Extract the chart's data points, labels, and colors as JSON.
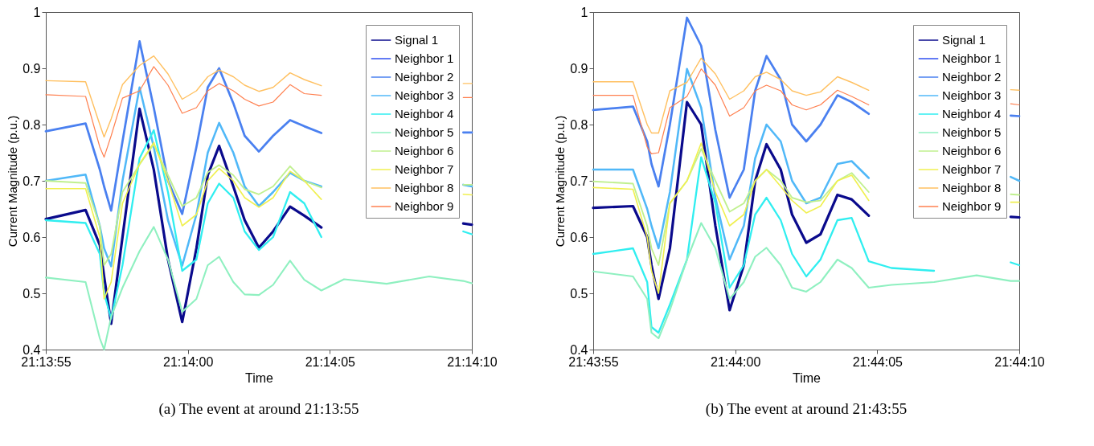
{
  "chart_data": [
    {
      "type": "line",
      "xlabel": "Time",
      "ylabel": "Current Magnitude (p.u.)",
      "annotations": [
        "(a)  The event at around 21:13:55"
      ],
      "legend": "top right",
      "grid": false,
      "line_style": "solid",
      "xlim": [
        21.231944,
        21.236111
      ],
      "xticks": [
        {
          "value": 21.231944,
          "label": "21:13:55"
        },
        {
          "value": 21.233333,
          "label": "21:14:00"
        },
        {
          "value": 21.234722,
          "label": "21:14:05"
        },
        {
          "value": 21.236111,
          "label": "21:14:10"
        }
      ],
      "ylim": [
        0.4,
        1
      ],
      "yticks": [
        0.4,
        0.5,
        0.6,
        0.7,
        0.8,
        0.9,
        1
      ],
      "x": [
        21.231944,
        21.232333,
        21.232472,
        21.232514,
        21.232583,
        21.232694,
        21.232861,
        21.233,
        21.233139,
        21.233278,
        21.233417,
        21.233528,
        21.233639,
        21.233778,
        21.233889,
        21.234028,
        21.234167,
        21.234333,
        21.234472,
        21.234639,
        21.234861,
        21.235278,
        21.235694,
        21.236027,
        21.236111
      ],
      "series": [
        {
          "name": "Signal 1",
          "color": "#0a0a8c",
          "values": [
            0.632,
            0.648,
            0.586,
            0.53,
            0.446,
            0.6,
            0.828,
            0.72,
            0.56,
            0.449,
            0.58,
            0.71,
            0.762,
            0.69,
            0.63,
            0.581,
            0.61,
            0.654,
            0.638,
            0.617,
            null,
            null,
            null,
            0.624,
            0.622
          ]
        },
        {
          "name": "Neighbor 1",
          "color": "#2f4ff0",
          "values": [
            null,
            null,
            null,
            null,
            null,
            null,
            null,
            null,
            null,
            null,
            null,
            null,
            null,
            null,
            null,
            null,
            null,
            null,
            null,
            null,
            null,
            null,
            null,
            null,
            null
          ]
        },
        {
          "name": "Neighbor 2",
          "color": "#4a80f0",
          "values": [
            0.788,
            0.802,
            0.72,
            0.69,
            0.647,
            0.77,
            0.948,
            0.83,
            0.7,
            0.641,
            0.76,
            0.866,
            0.9,
            0.838,
            0.78,
            0.752,
            0.78,
            0.808,
            0.797,
            0.785,
            null,
            null,
            null,
            0.786,
            0.786
          ]
        },
        {
          "name": "Neighbor 3",
          "color": "#50b8f8",
          "values": [
            0.7,
            0.711,
            0.62,
            0.58,
            0.548,
            0.7,
            0.866,
            0.76,
            0.63,
            0.549,
            0.64,
            0.75,
            0.803,
            0.75,
            0.69,
            0.655,
            0.68,
            0.714,
            0.7,
            0.69,
            null,
            null,
            null,
            0.693,
            0.69
          ]
        },
        {
          "name": "Neighbor 4",
          "color": "#30eef0",
          "values": [
            0.63,
            0.625,
            0.57,
            0.5,
            0.455,
            0.55,
            0.74,
            0.79,
            0.68,
            0.54,
            0.56,
            0.66,
            0.695,
            0.67,
            0.61,
            0.577,
            0.6,
            0.68,
            0.66,
            0.6,
            null,
            null,
            null,
            0.61,
            0.605
          ]
        },
        {
          "name": "Neighbor 5",
          "color": "#8ff0c0",
          "values": [
            0.528,
            0.52,
            0.42,
            0.4,
            0.458,
            0.51,
            0.575,
            0.618,
            0.56,
            0.467,
            0.49,
            0.55,
            0.565,
            0.52,
            0.498,
            0.497,
            0.515,
            0.558,
            0.524,
            0.505,
            0.525,
            0.517,
            0.53,
            0.522,
            0.518
          ]
        },
        {
          "name": "Neighbor 6",
          "color": "#c0f08f",
          "values": [
            0.7,
            0.696,
            0.62,
            0.55,
            0.57,
            0.68,
            0.729,
            0.765,
            0.71,
            0.655,
            0.67,
            0.715,
            0.728,
            0.71,
            0.685,
            0.676,
            0.69,
            0.726,
            0.7,
            0.688,
            null,
            null,
            null,
            0.693,
            0.693
          ]
        },
        {
          "name": "Neighbor 7",
          "color": "#f0f050",
          "values": [
            0.686,
            0.686,
            0.6,
            0.49,
            0.52,
            0.66,
            0.73,
            0.768,
            0.7,
            0.62,
            0.64,
            0.7,
            0.722,
            0.7,
            0.67,
            0.653,
            0.67,
            0.717,
            0.7,
            0.667,
            null,
            null,
            null,
            0.676,
            0.675
          ]
        },
        {
          "name": "Neighbor 8",
          "color": "#ffc060",
          "values": [
            0.878,
            0.876,
            0.8,
            0.778,
            0.81,
            0.871,
            0.905,
            0.922,
            0.89,
            0.845,
            0.86,
            0.885,
            0.897,
            0.885,
            0.87,
            0.859,
            0.866,
            0.892,
            0.88,
            0.869,
            null,
            null,
            null,
            0.873,
            0.873
          ]
        },
        {
          "name": "Neighbor 9",
          "color": "#ff8050",
          "values": [
            0.853,
            0.85,
            0.76,
            0.742,
            0.78,
            0.847,
            0.86,
            0.903,
            0.87,
            0.82,
            0.83,
            0.86,
            0.873,
            0.86,
            0.845,
            0.833,
            0.84,
            0.871,
            0.855,
            0.852,
            null,
            null,
            null,
            0.848,
            0.848
          ]
        }
      ]
    },
    {
      "type": "line",
      "xlabel": "Time",
      "ylabel": "Current Magnitude (p.u.)",
      "annotations": [
        "(b)  The event at around 21:43:55"
      ],
      "legend": "top right",
      "grid": false,
      "line_style": "solid",
      "xlim": [
        21.731944,
        21.736111
      ],
      "xticks": [
        {
          "value": 21.731944,
          "label": "21:43:55"
        },
        {
          "value": 21.733333,
          "label": "21:44:00"
        },
        {
          "value": 21.734722,
          "label": "21:44:05"
        },
        {
          "value": 21.736111,
          "label": "21:44:10"
        }
      ],
      "ylim": [
        0.4,
        1
      ],
      "yticks": [
        0.4,
        0.5,
        0.6,
        0.7,
        0.8,
        0.9,
        1
      ],
      "x": [
        21.731944,
        21.732333,
        21.732472,
        21.732514,
        21.732583,
        21.732694,
        21.732861,
        21.733,
        21.733139,
        21.733278,
        21.733417,
        21.733528,
        21.733639,
        21.733778,
        21.733889,
        21.734028,
        21.734167,
        21.734333,
        21.734472,
        21.734639,
        21.734861,
        21.735278,
        21.735694,
        21.736027,
        21.736111
      ],
      "series": [
        {
          "name": "Signal 1",
          "color": "#0a0a8c",
          "values": [
            0.652,
            0.655,
            0.6,
            0.55,
            0.49,
            0.58,
            0.84,
            0.8,
            0.62,
            0.47,
            0.55,
            0.7,
            0.765,
            0.72,
            0.64,
            0.59,
            0.605,
            0.675,
            0.667,
            0.638,
            null,
            null,
            null,
            0.636,
            0.635
          ]
        },
        {
          "name": "Neighbor 1",
          "color": "#2f4ff0",
          "values": [
            null,
            null,
            null,
            null,
            null,
            null,
            null,
            null,
            null,
            null,
            null,
            null,
            null,
            null,
            null,
            null,
            null,
            null,
            null,
            null,
            null,
            null,
            null,
            null,
            null
          ]
        },
        {
          "name": "Neighbor 2",
          "color": "#4a80f0",
          "values": [
            0.826,
            0.832,
            0.77,
            0.73,
            0.69,
            0.8,
            0.99,
            0.94,
            0.79,
            0.67,
            0.72,
            0.86,
            0.922,
            0.88,
            0.8,
            0.77,
            0.8,
            0.852,
            0.84,
            0.819,
            null,
            null,
            null,
            0.816,
            0.815
          ]
        },
        {
          "name": "Neighbor 3",
          "color": "#50b8f8",
          "values": [
            0.72,
            0.72,
            0.65,
            0.62,
            0.58,
            0.68,
            0.899,
            0.83,
            0.67,
            0.56,
            0.62,
            0.74,
            0.8,
            0.77,
            0.7,
            0.66,
            0.67,
            0.73,
            0.735,
            0.705,
            null,
            null,
            null,
            0.707,
            0.7
          ]
        },
        {
          "name": "Neighbor 4",
          "color": "#30eef0",
          "values": [
            0.57,
            0.58,
            0.52,
            0.44,
            0.43,
            0.48,
            0.56,
            0.742,
            0.66,
            0.51,
            0.55,
            0.64,
            0.67,
            0.63,
            0.57,
            0.53,
            0.56,
            0.63,
            0.634,
            0.557,
            0.545,
            0.54,
            null,
            0.555,
            0.55
          ]
        },
        {
          "name": "Neighbor 5",
          "color": "#8ff0c0",
          "values": [
            0.539,
            0.53,
            0.49,
            0.43,
            0.42,
            0.47,
            0.56,
            0.625,
            0.58,
            0.49,
            0.52,
            0.565,
            0.581,
            0.55,
            0.51,
            0.503,
            0.52,
            0.56,
            0.545,
            0.51,
            0.515,
            0.52,
            0.532,
            0.522,
            0.522
          ]
        },
        {
          "name": "Neighbor 6",
          "color": "#c0f08f",
          "values": [
            0.699,
            0.695,
            0.62,
            0.58,
            0.55,
            0.66,
            0.7,
            0.757,
            0.7,
            0.645,
            0.66,
            0.7,
            0.72,
            0.7,
            0.67,
            0.662,
            0.665,
            0.7,
            0.714,
            0.68,
            null,
            null,
            null,
            0.676,
            0.675
          ]
        },
        {
          "name": "Neighbor 7",
          "color": "#f0f050",
          "values": [
            0.688,
            0.685,
            0.6,
            0.54,
            0.5,
            0.66,
            0.7,
            0.767,
            0.68,
            0.62,
            0.64,
            0.7,
            0.72,
            0.69,
            0.665,
            0.643,
            0.655,
            0.7,
            0.71,
            0.665,
            null,
            null,
            null,
            0.662,
            0.662
          ]
        },
        {
          "name": "Neighbor 8",
          "color": "#ffc060",
          "values": [
            0.876,
            0.876,
            0.8,
            0.785,
            0.785,
            0.86,
            0.875,
            0.918,
            0.89,
            0.845,
            0.86,
            0.885,
            0.893,
            0.88,
            0.86,
            0.852,
            0.858,
            0.885,
            0.875,
            0.861,
            null,
            null,
            null,
            0.862,
            0.861
          ]
        },
        {
          "name": "Neighbor 9",
          "color": "#ff8050",
          "values": [
            0.852,
            0.852,
            0.76,
            0.748,
            0.75,
            0.83,
            0.85,
            0.899,
            0.87,
            0.815,
            0.83,
            0.86,
            0.87,
            0.86,
            0.835,
            0.826,
            0.835,
            0.861,
            0.85,
            0.835,
            null,
            null,
            null,
            0.837,
            0.835
          ]
        }
      ]
    }
  ]
}
